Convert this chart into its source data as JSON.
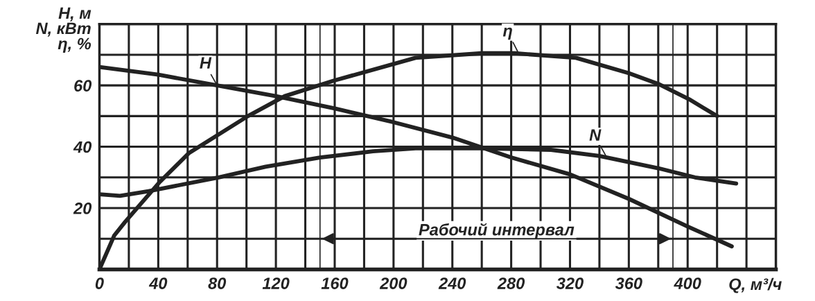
{
  "chart_data": {
    "type": "line",
    "xlabel": "Q, м³/ч",
    "ylabel": "H, м\nN, кВт\nη, %",
    "series": [
      {
        "color": "#222222",
        "x": [
          0,
          40,
          80,
          120,
          160,
          200,
          240,
          280,
          320,
          360,
          400,
          430
        ],
        "values": [
          66,
          63.5,
          60,
          56.5,
          52.5,
          48,
          43,
          36.5,
          31,
          23,
          14,
          7.5
        ]
      },
      {
        "color": "#222222",
        "x": [
          0,
          10,
          17.5,
          41,
          61,
          101,
          126,
          159,
          215,
          260,
          282,
          324,
          360,
          380,
          401,
          420
        ],
        "values": [
          0,
          11,
          15.5,
          28.5,
          38,
          50,
          56.5,
          61.5,
          69,
          70.5,
          70.5,
          69,
          64,
          60.5,
          55.5,
          50
        ]
      },
      {
        "color": "#222222",
        "x": [
          0,
          14,
          33.5,
          81,
          113,
          150,
          186,
          215,
          260,
          307,
          340,
          380,
          405,
          433
        ],
        "values": [
          24.5,
          24,
          25.5,
          30,
          33.5,
          36.5,
          38.5,
          39.5,
          39.5,
          39,
          37,
          33,
          30,
          28
        ]
      }
    ],
    "annotations": [
      {
        "text": "H",
        "x": 80,
        "y": 60
      },
      {
        "text": "η",
        "x": 285,
        "y": 70.5
      },
      {
        "text": "N",
        "x": 345,
        "y": 36.5
      },
      "Рабочий интервал"
    ],
    "ref_lines": [
      {
        "axis": "x",
        "value": 150
      },
      {
        "axis": "x",
        "value": 390
      }
    ],
    "xlim": [
      0,
      460
    ],
    "xticks": [
      0,
      {
        "value": 20,
        "label": null
      },
      40,
      {
        "value": 60,
        "label": null
      },
      80,
      {
        "value": 100,
        "label": null
      },
      120,
      {
        "value": 140,
        "label": null
      },
      160,
      {
        "value": 180,
        "label": null
      },
      200,
      {
        "value": 220,
        "label": null
      },
      240,
      {
        "value": 260,
        "label": null
      },
      280,
      {
        "value": 300,
        "label": null
      },
      320,
      {
        "value": 340,
        "label": null
      },
      360,
      {
        "value": 380,
        "label": null
      },
      400,
      {
        "value": 420,
        "label": null
      },
      {
        "value": 440,
        "label": null
      }
    ],
    "ylim": [
      0,
      80
    ],
    "yticks": [
      {
        "value": 10,
        "label": null
      },
      20,
      {
        "value": 30,
        "label": null
      },
      40,
      {
        "value": 50,
        "label": null
      },
      60,
      {
        "value": 70,
        "label": null
      }
    ],
    "grid": true,
    "line_style": "solid",
    "marker": "none"
  }
}
